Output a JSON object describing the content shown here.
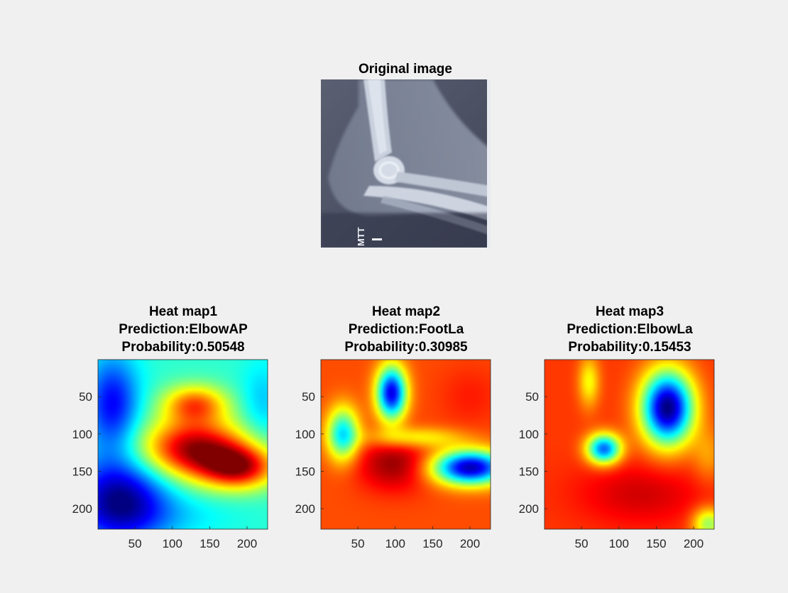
{
  "figure": {
    "background": "#f0f0f0"
  },
  "original": {
    "title": "Original image",
    "marker_text": "MTT"
  },
  "colormap": "jet",
  "chart_data": [
    {
      "type": "heatmap",
      "title_lines": [
        "Heat map1",
        "Prediction:ElbowAP",
        "Probability:0.50548"
      ],
      "prediction": "ElbowAP",
      "probability": 0.50548,
      "xlim": [
        0.5,
        227.5
      ],
      "ylim": [
        0.5,
        227.5
      ],
      "xticks": [
        50,
        100,
        150,
        200
      ],
      "yticks": [
        50,
        100,
        150,
        200
      ],
      "value_range": [
        0,
        1
      ],
      "base": 0.42,
      "blobs": [
        {
          "x": 130,
          "y": 120,
          "sx": 50,
          "sy": 28,
          "a": 0.55
        },
        {
          "x": 190,
          "y": 145,
          "sx": 35,
          "sy": 20,
          "a": 0.45
        },
        {
          "x": 130,
          "y": 60,
          "sx": 30,
          "sy": 18,
          "a": 0.35
        },
        {
          "x": 30,
          "y": 190,
          "sx": 45,
          "sy": 40,
          "a": -0.42
        },
        {
          "x": 20,
          "y": 60,
          "sx": 25,
          "sy": 45,
          "a": -0.3
        },
        {
          "x": 220,
          "y": 60,
          "sx": 20,
          "sy": 40,
          "a": -0.1
        },
        {
          "x": 110,
          "y": 210,
          "sx": 60,
          "sy": 20,
          "a": -0.05
        }
      ]
    },
    {
      "type": "heatmap",
      "title_lines": [
        "Heat map2",
        "Prediction:FootLa",
        "Probability:0.30985"
      ],
      "prediction": "FootLa",
      "probability": 0.30985,
      "xlim": [
        0.5,
        227.5
      ],
      "ylim": [
        0.5,
        227.5
      ],
      "xticks": [
        50,
        100,
        150,
        200
      ],
      "yticks": [
        50,
        100,
        150,
        200
      ],
      "value_range": [
        0,
        1
      ],
      "base": 0.8,
      "blobs": [
        {
          "x": 95,
          "y": 45,
          "sx": 14,
          "sy": 25,
          "a": -0.7
        },
        {
          "x": 200,
          "y": 145,
          "sx": 35,
          "sy": 16,
          "a": -0.75
        },
        {
          "x": 30,
          "y": 100,
          "sx": 15,
          "sy": 25,
          "a": -0.45
        },
        {
          "x": 125,
          "y": 105,
          "sx": 45,
          "sy": 10,
          "a": -0.2
        },
        {
          "x": 100,
          "y": 140,
          "sx": 35,
          "sy": 25,
          "a": 0.18
        },
        {
          "x": 200,
          "y": 50,
          "sx": 30,
          "sy": 30,
          "a": 0.05
        }
      ]
    },
    {
      "type": "heatmap",
      "title_lines": [
        "Heat map3",
        "Prediction:ElbowLa",
        "Probability:0.15453"
      ],
      "prediction": "ElbowLa",
      "probability": 0.15453,
      "xlim": [
        0.5,
        227.5
      ],
      "ylim": [
        0.5,
        227.5
      ],
      "xticks": [
        50,
        100,
        150,
        200
      ],
      "yticks": [
        50,
        100,
        150,
        200
      ],
      "value_range": [
        0,
        1
      ],
      "base": 0.82,
      "blobs": [
        {
          "x": 165,
          "y": 65,
          "sx": 24,
          "sy": 34,
          "a": -0.82
        },
        {
          "x": 80,
          "y": 120,
          "sx": 16,
          "sy": 14,
          "a": -0.6
        },
        {
          "x": 60,
          "y": 30,
          "sx": 10,
          "sy": 24,
          "a": -0.2
        },
        {
          "x": 130,
          "y": 180,
          "sx": 60,
          "sy": 30,
          "a": 0.1
        },
        {
          "x": 220,
          "y": 220,
          "sx": 15,
          "sy": 15,
          "a": -0.3
        },
        {
          "x": 220,
          "y": 130,
          "sx": 15,
          "sy": 25,
          "a": -0.1
        }
      ]
    }
  ]
}
